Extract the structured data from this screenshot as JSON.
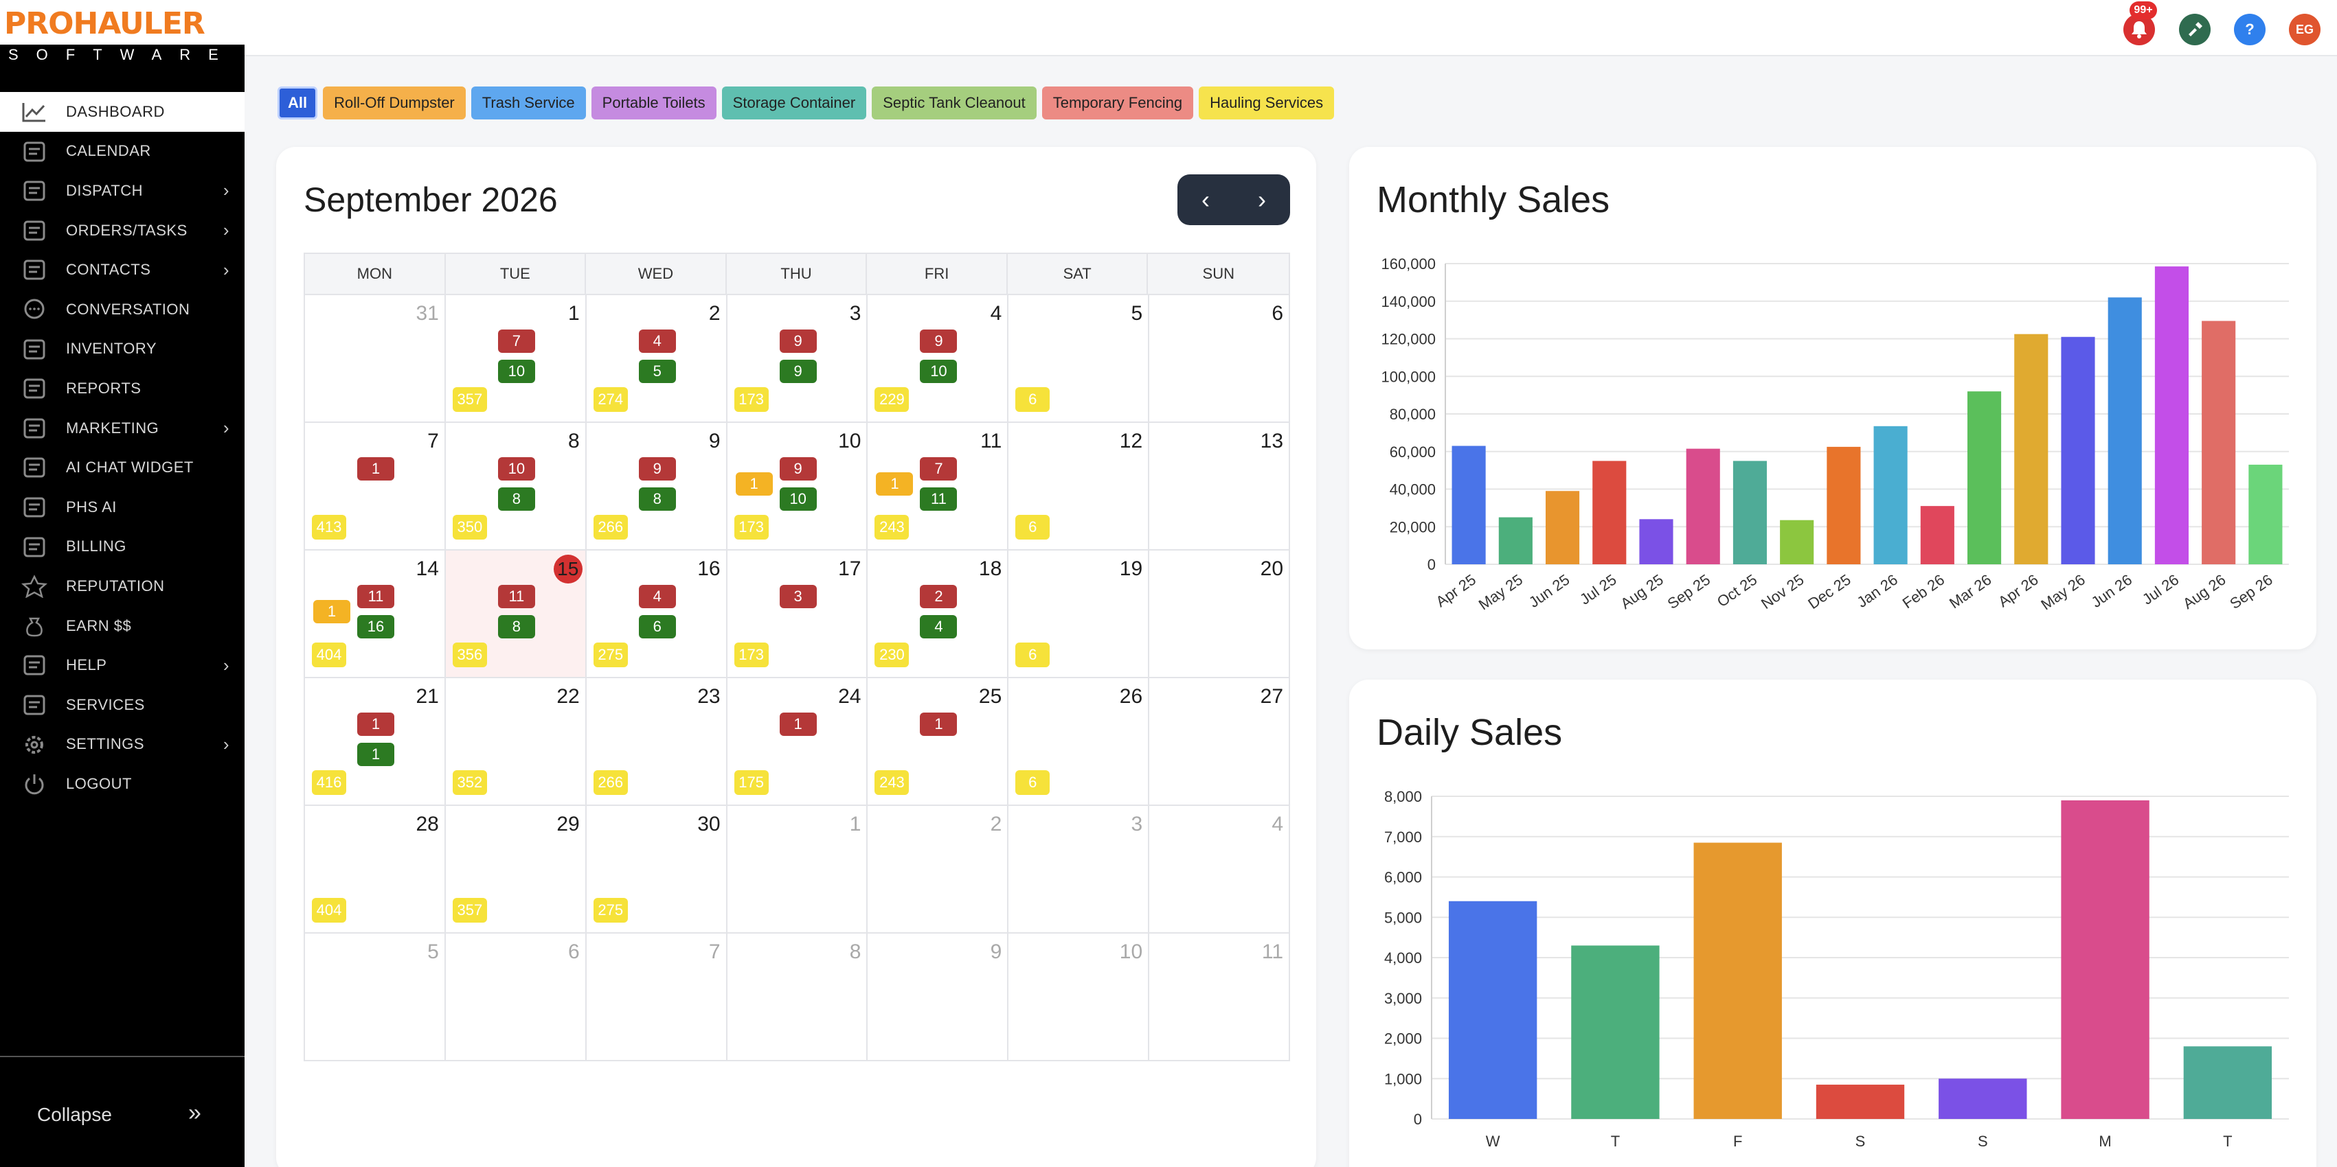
{
  "brand": {
    "name": "PROHAULER",
    "tagline": "SOFTWARE",
    "tagline_letters": [
      "S",
      "O",
      "F",
      "T",
      "W",
      "A",
      "R",
      "E"
    ]
  },
  "sidebar": {
    "items": [
      {
        "label": "DASHBOARD",
        "icon": "dashboard-chart-icon",
        "active": true,
        "has_submenu": false
      },
      {
        "label": "CALENDAR",
        "icon": "calendar-icon",
        "has_submenu": false
      },
      {
        "label": "DISPATCH",
        "icon": "truck-icon",
        "has_submenu": true
      },
      {
        "label": "ORDERS/TASKS",
        "icon": "checklist-icon",
        "has_submenu": true
      },
      {
        "label": "CONTACTS",
        "icon": "contact-card-icon",
        "has_submenu": true
      },
      {
        "label": "CONVERSATION",
        "icon": "chat-bubble-icon",
        "has_submenu": false
      },
      {
        "label": "INVENTORY",
        "icon": "boxes-icon",
        "has_submenu": false
      },
      {
        "label": "REPORTS",
        "icon": "report-icon",
        "has_submenu": false
      },
      {
        "label": "MARKETING",
        "icon": "marketing-icon",
        "has_submenu": true
      },
      {
        "label": "AI CHAT WIDGET",
        "icon": "ai-chat-icon",
        "has_submenu": false
      },
      {
        "label": "PHS AI",
        "icon": "ai-icon",
        "has_submenu": false
      },
      {
        "label": "BILLING",
        "icon": "billing-icon",
        "has_submenu": false
      },
      {
        "label": "REPUTATION",
        "icon": "star-icon",
        "has_submenu": false
      },
      {
        "label": "EARN $$",
        "icon": "money-bag-icon",
        "has_submenu": false
      },
      {
        "label": "HELP",
        "icon": "help-doc-icon",
        "has_submenu": true
      },
      {
        "label": "SERVICES",
        "icon": "services-truck-icon",
        "has_submenu": false
      },
      {
        "label": "SETTINGS",
        "icon": "gear-icon",
        "has_submenu": true
      },
      {
        "label": "LOGOUT",
        "icon": "power-icon",
        "has_submenu": false
      }
    ],
    "collapse_label": "Collapse",
    "collapse_icon": "»"
  },
  "topbar": {
    "notification_badge": "99+",
    "notification_icon": "bell-icon",
    "tools_icon": "tools-icon",
    "help_icon": "question-icon",
    "help_glyph": "?",
    "avatar_initials": "EG",
    "colors": {
      "notification": "#d93030",
      "tools": "#2f6b4f",
      "help": "#2f80ed",
      "avatar": "#e0552e"
    }
  },
  "filters": [
    {
      "label": "All",
      "color": "#2d5fd8",
      "selected": true
    },
    {
      "label": "Roll-Off Dumpster",
      "color": "#f5b04a"
    },
    {
      "label": "Trash Service",
      "color": "#5ea7ef"
    },
    {
      "label": "Portable Toilets",
      "color": "#c58be0"
    },
    {
      "label": "Storage Container",
      "color": "#5fbfb0"
    },
    {
      "label": "Septic Tank Cleanout",
      "color": "#a5ce7e"
    },
    {
      "label": "Temporary Fencing",
      "color": "#ec8b84"
    },
    {
      "label": "Hauling Services",
      "color": "#f6e34d"
    }
  ],
  "calendar": {
    "title": "September 2026",
    "prev_icon": "‹",
    "next_icon": "›",
    "weekdays": [
      "MON",
      "TUE",
      "WED",
      "THU",
      "FRI",
      "SAT",
      "SUN"
    ],
    "weeks": [
      [
        {
          "day": "31",
          "other": true
        },
        {
          "day": "1",
          "red": "7",
          "green": "10",
          "yellow": "357"
        },
        {
          "day": "2",
          "red": "4",
          "green": "5",
          "yellow": "274"
        },
        {
          "day": "3",
          "red": "9",
          "green": "9",
          "yellow": "173"
        },
        {
          "day": "4",
          "red": "9",
          "green": "10",
          "yellow": "229"
        },
        {
          "day": "5",
          "yellow": "6"
        },
        {
          "day": "6"
        }
      ],
      [
        {
          "day": "7",
          "red": "1",
          "yellow": "413"
        },
        {
          "day": "8",
          "red": "10",
          "green": "8",
          "yellow": "350"
        },
        {
          "day": "9",
          "red": "9",
          "green": "8",
          "yellow": "266"
        },
        {
          "day": "10",
          "orange": "1",
          "red": "9",
          "green": "10",
          "yellow": "173"
        },
        {
          "day": "11",
          "orange": "1",
          "red": "7",
          "green": "11",
          "yellow": "243"
        },
        {
          "day": "12",
          "yellow": "6"
        },
        {
          "day": "13"
        }
      ],
      [
        {
          "day": "14",
          "orange": "1",
          "red": "11",
          "green": "16",
          "yellow": "404"
        },
        {
          "day": "15",
          "today": true,
          "red": "11",
          "green": "8",
          "yellow": "356"
        },
        {
          "day": "16",
          "red": "4",
          "green": "6",
          "yellow": "275"
        },
        {
          "day": "17",
          "red": "3",
          "yellow": "173"
        },
        {
          "day": "18",
          "red": "2",
          "green": "4",
          "yellow": "230"
        },
        {
          "day": "19",
          "yellow": "6"
        },
        {
          "day": "20"
        }
      ],
      [
        {
          "day": "21",
          "red": "1",
          "green": "1",
          "yellow": "416"
        },
        {
          "day": "22",
          "yellow": "352"
        },
        {
          "day": "23",
          "yellow": "266"
        },
        {
          "day": "24",
          "red": "1",
          "yellow": "175"
        },
        {
          "day": "25",
          "red": "1",
          "yellow": "243"
        },
        {
          "day": "26",
          "yellow": "6"
        },
        {
          "day": "27"
        }
      ],
      [
        {
          "day": "28",
          "yellow": "404"
        },
        {
          "day": "29",
          "yellow": "357"
        },
        {
          "day": "30",
          "yellow": "275"
        },
        {
          "day": "1",
          "other": true
        },
        {
          "day": "2",
          "other": true
        },
        {
          "day": "3",
          "other": true
        },
        {
          "day": "4",
          "other": true
        }
      ],
      [
        {
          "day": "5",
          "other": true
        },
        {
          "day": "6",
          "other": true
        },
        {
          "day": "7",
          "other": true
        },
        {
          "day": "8",
          "other": true
        },
        {
          "day": "9",
          "other": true
        },
        {
          "day": "10",
          "other": true
        },
        {
          "day": "11",
          "other": true
        }
      ]
    ]
  },
  "chart_data": [
    {
      "type": "bar",
      "title": "Monthly Sales",
      "categories": [
        "Apr 25",
        "May 25",
        "Jun 25",
        "Jul 25",
        "Aug 25",
        "Sep 25",
        "Oct 25",
        "Nov 25",
        "Dec 25",
        "Jan 26",
        "Feb 26",
        "Mar 26",
        "Apr 26",
        "May 26",
        "Jun 26",
        "Jul 26",
        "Aug 26",
        "Sep 26"
      ],
      "values": [
        63000,
        25000,
        39000,
        55000,
        24000,
        61500,
        55000,
        23500,
        62500,
        73500,
        31000,
        92000,
        122500,
        121000,
        142000,
        158500,
        129500,
        53000
      ],
      "colors": [
        "#4a74e8",
        "#4caf7c",
        "#e8952e",
        "#dc4b3f",
        "#7b51e6",
        "#d94c8c",
        "#4fab97",
        "#8cc63f",
        "#e8742b",
        "#4aaed1",
        "#e0475c",
        "#5bbf5b",
        "#e0aa30",
        "#5b5ae8",
        "#3f8ee0",
        "#c34ee8",
        "#e06d66",
        "#6bd57a"
      ],
      "ylim": [
        0,
        160000
      ],
      "yticks": [
        "0",
        "20,000",
        "40,000",
        "60,000",
        "80,000",
        "100,000",
        "120,000",
        "140,000",
        "160,000"
      ],
      "grid": true
    },
    {
      "type": "bar",
      "title": "Daily Sales",
      "categories": [
        "W",
        "T",
        "F",
        "S",
        "S",
        "M",
        "T"
      ],
      "values": [
        5400,
        4300,
        6850,
        850,
        1000,
        7900,
        1800
      ],
      "colors": [
        "#4a74e8",
        "#4caf7c",
        "#e6992e",
        "#dc4b3f",
        "#7b51e6",
        "#d94c8c",
        "#4fab97"
      ],
      "ylim": [
        0,
        8000
      ],
      "yticks": [
        "0",
        "1,000",
        "2,000",
        "3,000",
        "4,000",
        "5,000",
        "6,000",
        "7,000",
        "8,000"
      ],
      "grid": true
    }
  ]
}
